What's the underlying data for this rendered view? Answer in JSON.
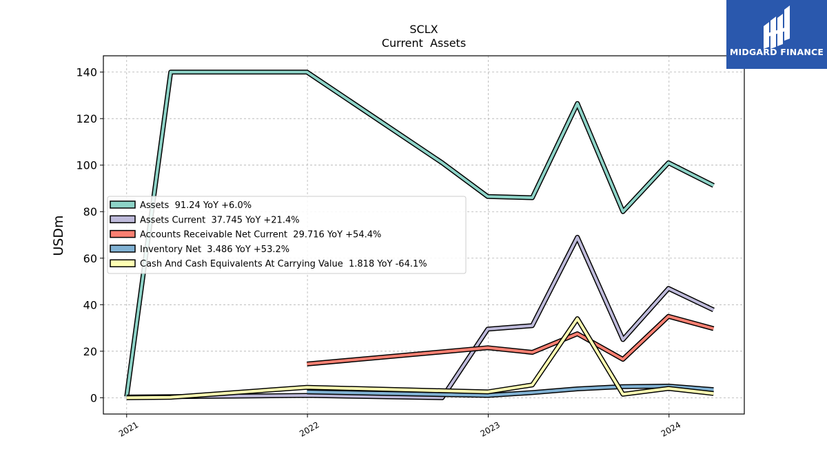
{
  "logo": {
    "brand": "MIDGARD FINANCE",
    "color": "#2a58ad"
  },
  "chart_data": {
    "type": "line",
    "title": "SCLX",
    "subtitle": "Current  Assets",
    "xlabel": "",
    "ylabel": "USDm",
    "ylim": [
      -7,
      147
    ],
    "xlim": [
      "2020-11-15",
      "2024-06-01"
    ],
    "yticks": [
      0,
      20,
      40,
      60,
      80,
      100,
      120,
      140
    ],
    "xticks": [
      "2021-01-01",
      "2022-01-01",
      "2023-01-01",
      "2024-01-01"
    ],
    "xtick_labels": [
      "2021",
      "2022",
      "2023",
      "2024"
    ],
    "grid": true,
    "legend_position": "center-left",
    "series": [
      {
        "name": "Assets",
        "legend": "Assets  91.24 YoY +6.0%",
        "color": "#8dd3c7",
        "points": [
          [
            "2021-01-01",
            0.5
          ],
          [
            "2021-03-31",
            140
          ],
          [
            "2021-12-31",
            140
          ],
          [
            "2022-09-30",
            101
          ],
          [
            "2022-12-31",
            86.5
          ],
          [
            "2023-03-31",
            86
          ],
          [
            "2023-06-30",
            126.5
          ],
          [
            "2023-09-30",
            80
          ],
          [
            "2023-12-31",
            101
          ],
          [
            "2024-03-31",
            91.24
          ]
        ]
      },
      {
        "name": "Assets Current",
        "legend": "Assets Current  37.745 YoY +21.4%",
        "color": "#bebada",
        "points": [
          [
            "2021-01-01",
            0.3
          ],
          [
            "2021-12-31",
            1
          ],
          [
            "2022-09-30",
            0
          ],
          [
            "2022-12-31",
            29.5
          ],
          [
            "2023-03-31",
            31
          ],
          [
            "2023-06-30",
            69
          ],
          [
            "2023-09-30",
            25
          ],
          [
            "2023-12-31",
            47
          ],
          [
            "2024-03-31",
            37.745
          ]
        ]
      },
      {
        "name": "Accounts Receivable Net Current",
        "legend": "Accounts Receivable Net Current  29.716 YoY +54.4%",
        "color": "#fb8072",
        "points": [
          [
            "2021-12-31",
            14.5
          ],
          [
            "2022-12-31",
            21.5
          ],
          [
            "2023-03-31",
            19.5
          ],
          [
            "2023-06-30",
            27.5
          ],
          [
            "2023-09-30",
            16.5
          ],
          [
            "2023-12-31",
            35
          ],
          [
            "2024-03-31",
            29.716
          ]
        ]
      },
      {
        "name": "Inventory Net",
        "legend": "Inventory Net  3.486 YoY +53.2%",
        "color": "#80b1d3",
        "points": [
          [
            "2021-12-31",
            2.5
          ],
          [
            "2022-12-31",
            1
          ],
          [
            "2023-03-31",
            2.2
          ],
          [
            "2023-06-30",
            3.8
          ],
          [
            "2023-09-30",
            4.8
          ],
          [
            "2023-12-31",
            5
          ],
          [
            "2024-03-31",
            3.486
          ]
        ]
      },
      {
        "name": "Cash And Cash Equivalents At Carrying Value",
        "legend": "Cash And Cash Equivalents At Carrying Value  1.818 YoY -64.1%",
        "color": "#ffffb3",
        "points": [
          [
            "2021-01-01",
            0
          ],
          [
            "2021-03-31",
            0.2
          ],
          [
            "2021-12-31",
            4.5
          ],
          [
            "2022-12-31",
            2.5
          ],
          [
            "2023-03-31",
            5.5
          ],
          [
            "2023-06-30",
            34
          ],
          [
            "2023-09-30",
            1.5
          ],
          [
            "2023-12-31",
            4
          ],
          [
            "2024-03-31",
            1.818
          ]
        ]
      }
    ]
  }
}
